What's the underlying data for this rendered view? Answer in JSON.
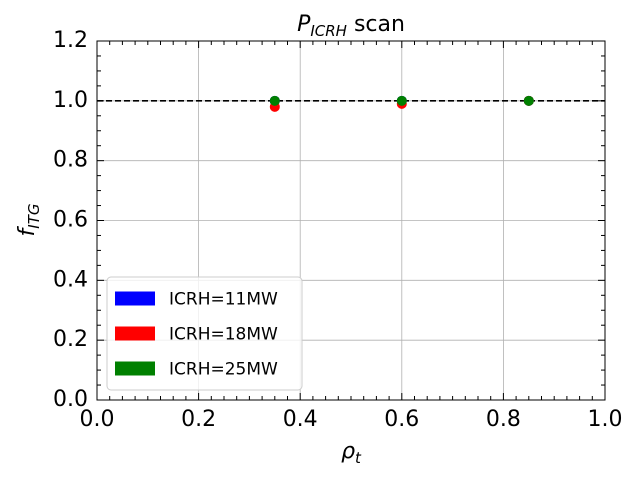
{
  "chart_data": {
    "type": "scatter",
    "title": {
      "main": "P",
      "sub": "ICRH",
      "rest": " scan"
    },
    "x_label": {
      "main": "ρ",
      "sub": "t"
    },
    "y_label": {
      "main": "f",
      "sub": "ITG"
    },
    "series": [
      {
        "name": "ICRH=11MW",
        "color": "#0000ff",
        "x": [
          0.35,
          0.6,
          0.85
        ],
        "values": [
          1.0,
          1.0,
          1.0
        ]
      },
      {
        "name": "ICRH=18MW",
        "color": "#ff0000",
        "x": [
          0.35,
          0.6,
          0.85
        ],
        "values": [
          0.98,
          0.99,
          1.0
        ]
      },
      {
        "name": "ICRH=25MW",
        "color": "#008000",
        "x": [
          0.35,
          0.6,
          0.85
        ],
        "values": [
          1.0,
          1.0,
          1.0
        ]
      }
    ],
    "reference_line": 1.0,
    "xlim": [
      0,
      1
    ],
    "ylim": [
      0,
      1.2
    ],
    "xticks": [
      {
        "value": 0,
        "label": "0.0"
      },
      0.2,
      0.4,
      0.6,
      0.8,
      {
        "value": 1,
        "label": "1.0"
      }
    ],
    "yticks": [
      {
        "value": 0,
        "label": "0.0"
      },
      0.2,
      0.4,
      0.6,
      0.8,
      {
        "value": 1,
        "label": "1.0"
      },
      1.2
    ],
    "grid": true,
    "legend": "lower left"
  }
}
